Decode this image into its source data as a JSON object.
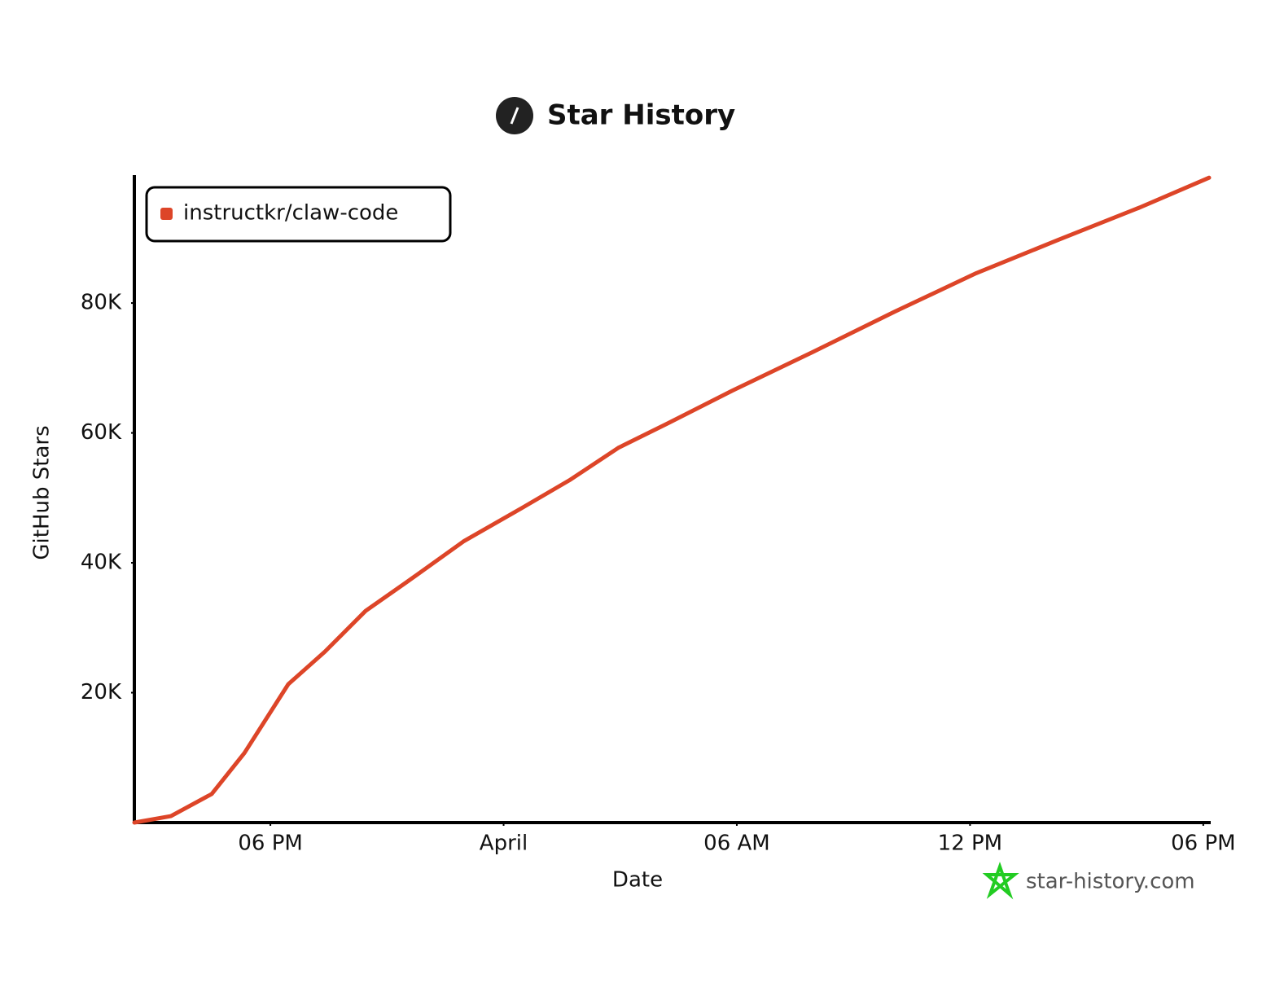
{
  "chart_data": {
    "type": "line",
    "title": "Star History",
    "x_label": "Date",
    "y_label": "GitHub Stars",
    "watermark": "star-history.com",
    "x": [
      14.5,
      15.44,
      16.49,
      17.33,
      18.46,
      19.4,
      20.45,
      21.5,
      22.97,
      24.43,
      25.69,
      26.95,
      28.2,
      29.88,
      31.97,
      34.07,
      36.16,
      38.26,
      40.36,
      42.15
    ],
    "series": [
      {
        "name": "instructkr/claw-code",
        "color": "#dd4528",
        "values": [
          0,
          1000,
          4400,
          10700,
          21300,
          26300,
          32600,
          37000,
          43300,
          48300,
          52700,
          57700,
          61400,
          66500,
          72500,
          78700,
          84600,
          89700,
          94700,
          99300
        ]
      }
    ],
    "xlim": [
      14.5,
      42.15
    ],
    "xticks": [
      {
        "value": 18,
        "label": "06 PM"
      },
      {
        "value": 24,
        "label": "April"
      },
      {
        "value": 30,
        "label": "06 AM"
      },
      {
        "value": 36,
        "label": "12 PM"
      },
      {
        "value": 42,
        "label": "06 PM"
      }
    ],
    "ylim": [
      0,
      99700
    ],
    "yticks": [
      {
        "value": 20000,
        "label": "20K"
      },
      {
        "value": 40000,
        "label": "40K"
      },
      {
        "value": 60000,
        "label": "60K"
      },
      {
        "value": 80000,
        "label": "80K"
      }
    ],
    "grid": false,
    "legend": "top-left"
  }
}
